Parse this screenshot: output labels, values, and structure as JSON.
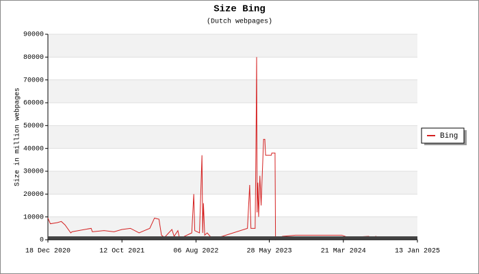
{
  "chart_data": {
    "type": "line",
    "title": "Size Bing",
    "subtitle": "(Dutch webpages)",
    "y_label": "Size in million webpages",
    "x": [
      "2020-12-18",
      "2020-12-28",
      "2021-01-25",
      "2021-02-10",
      "2021-02-25",
      "2021-03-20",
      "2021-03-25",
      "2021-06-10",
      "2021-06-15",
      "2021-08-01",
      "2021-09-10",
      "2021-10-12",
      "2021-11-15",
      "2021-12-20",
      "2022-01-10",
      "2022-02-01",
      "2022-02-20",
      "2022-03-10",
      "2022-03-20",
      "2022-04-01",
      "2022-05-01",
      "2022-05-10",
      "2022-05-25",
      "2022-06-01",
      "2022-07-20",
      "2022-07-28",
      "2022-08-01",
      "2022-08-20",
      "2022-08-30",
      "2022-09-02",
      "2022-09-05",
      "2022-09-10",
      "2022-09-20",
      "2022-10-10",
      "2022-11-20",
      "2023-03-01",
      "2023-03-10",
      "2023-03-15",
      "2023-04-01",
      "2023-04-05",
      "2023-04-07",
      "2023-04-09",
      "2023-04-12",
      "2023-04-15",
      "2023-04-20",
      "2023-04-25",
      "2023-05-05",
      "2023-05-10",
      "2023-05-13",
      "2023-06-05",
      "2023-06-07",
      "2023-06-20",
      "2023-06-22",
      "2023-07-20",
      "2023-09-10",
      "2024-03-15",
      "2024-04-10",
      "2024-07-01",
      "2024-07-10",
      "2024-08-01"
    ],
    "series": [
      {
        "name": "Bing",
        "color": "#d42020",
        "values": [
          9500,
          7000,
          7500,
          8000,
          6500,
          3000,
          3500,
          5000,
          3500,
          4000,
          3500,
          4500,
          5000,
          3000,
          4000,
          5000,
          9500,
          9000,
          2000,
          1000,
          4500,
          1500,
          4000,
          500,
          3000,
          20000,
          4000,
          3000,
          37000,
          3000,
          16000,
          2000,
          3000,
          500,
          1500,
          5000,
          24000,
          5000,
          5000,
          50000,
          80000,
          12000,
          25000,
          10000,
          28000,
          15000,
          44000,
          44000,
          37000,
          37000,
          38000,
          38000,
          0,
          1500,
          2000,
          2000,
          1000,
          1500,
          1000,
          1500
        ]
      }
    ],
    "xlim": [
      "2020-12-18",
      "2025-01-13"
    ],
    "xticks": [
      {
        "value": "2020-12-18",
        "label": "18 Dec 2020"
      },
      {
        "value": "2021-10-12",
        "label": "12 Oct 2021"
      },
      {
        "value": "2022-08-06",
        "label": "06 Aug 2022"
      },
      {
        "value": "2023-05-28",
        "label": "28 May 2023"
      },
      {
        "value": "2024-03-21",
        "label": "21 Mar 2024"
      },
      {
        "value": "2025-01-13",
        "label": "13 Jan 2025"
      }
    ],
    "ylim": [
      0,
      90000
    ],
    "yticks": [
      0,
      10000,
      20000,
      30000,
      40000,
      50000,
      60000,
      70000,
      80000,
      90000
    ],
    "grid": true
  }
}
